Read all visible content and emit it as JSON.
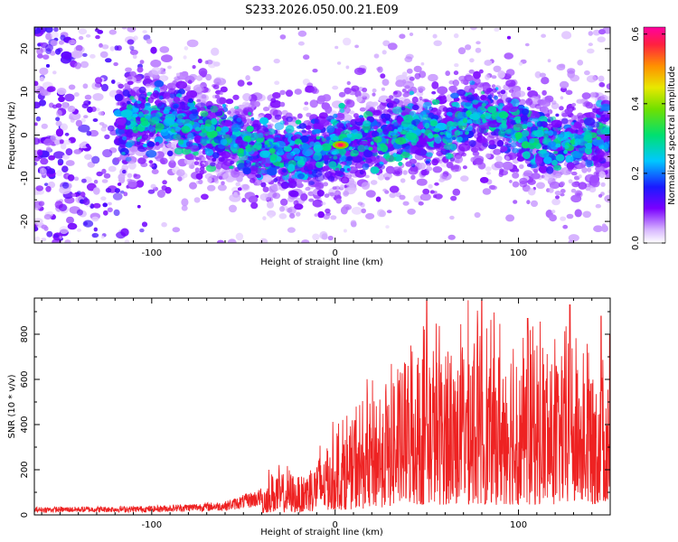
{
  "title": "S233.2026.050.00.21.E09",
  "colors": {
    "background": "#ffffff",
    "snr_line": "#ee2222",
    "axis": "#000000"
  },
  "chart_data": [
    {
      "type": "heatmap",
      "name": "spectrogram",
      "xlabel": "Height of straight line (km)",
      "ylabel": "Frequency (Hz)",
      "xlim": [
        -164,
        150
      ],
      "ylim": [
        -25,
        25
      ],
      "xticks": [
        -100,
        0,
        100
      ],
      "xtick_labels": [
        "-100",
        "0",
        "100"
      ],
      "yticks": [
        -20,
        -10,
        0,
        10,
        20
      ],
      "ytick_labels": [
        "-20",
        "-10",
        "0",
        "10",
        "20"
      ],
      "colorbar": {
        "label": "Normalized spectral amplitude",
        "range": [
          0.0,
          0.62
        ],
        "ticks": [
          0.0,
          0.2,
          0.4,
          0.6
        ],
        "tick_labels": [
          "0.0",
          "0.2",
          "0.4",
          "0.6"
        ]
      },
      "ridge_center_hz": [
        {
          "x": -115,
          "y": 3
        },
        {
          "x": -90,
          "y": 4
        },
        {
          "x": -70,
          "y": 1
        },
        {
          "x": -50,
          "y": -2
        },
        {
          "x": -35,
          "y": -4
        },
        {
          "x": -20,
          "y": -4.5
        },
        {
          "x": -5,
          "y": -3
        },
        {
          "x": 3,
          "y": -2
        },
        {
          "x": 20,
          "y": -1
        },
        {
          "x": 40,
          "y": 1
        },
        {
          "x": 60,
          "y": 1
        },
        {
          "x": 75,
          "y": 5
        },
        {
          "x": 85,
          "y": 5
        },
        {
          "x": 100,
          "y": 1
        },
        {
          "x": 115,
          "y": -2
        },
        {
          "x": 130,
          "y": -2
        },
        {
          "x": 145,
          "y": 0
        }
      ],
      "peak": {
        "x": 3,
        "y": -2.3,
        "amplitude": 0.6
      }
    },
    {
      "type": "line",
      "name": "snr",
      "xlabel": "Height of straight line (km)",
      "ylabel": "SNR (10 * v/v)",
      "xlim": [
        -164,
        150
      ],
      "ylim": [
        0,
        960
      ],
      "xticks": [
        -100,
        0,
        100
      ],
      "xtick_labels": [
        "-100",
        "0",
        "100"
      ],
      "yticks": [
        0,
        200,
        400,
        600,
        800
      ],
      "ytick_labels": [
        "0",
        "200",
        "400",
        "600",
        "800"
      ],
      "envelope": [
        {
          "x": -164,
          "y": 35
        },
        {
          "x": -100,
          "y": 40
        },
        {
          "x": -60,
          "y": 60
        },
        {
          "x": -40,
          "y": 120
        },
        {
          "x": -35,
          "y": 230
        },
        {
          "x": -20,
          "y": 200
        },
        {
          "x": -10,
          "y": 320
        },
        {
          "x": 0,
          "y": 420
        },
        {
          "x": 15,
          "y": 550
        },
        {
          "x": 30,
          "y": 700
        },
        {
          "x": 50,
          "y": 880
        },
        {
          "x": 80,
          "y": 900
        },
        {
          "x": 110,
          "y": 850
        },
        {
          "x": 130,
          "y": 850
        },
        {
          "x": 150,
          "y": 880
        }
      ],
      "peaks": [
        {
          "x": 50,
          "y": 950
        },
        {
          "x": 80,
          "y": 950
        },
        {
          "x": 105,
          "y": 870
        },
        {
          "x": 128,
          "y": 930
        },
        {
          "x": 145,
          "y": 880
        }
      ]
    }
  ]
}
